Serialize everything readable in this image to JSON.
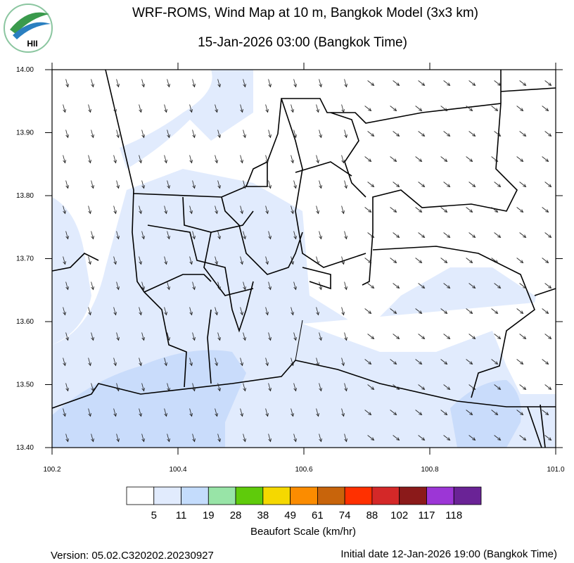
{
  "logo": {
    "text": "HII"
  },
  "header": {
    "title": "WRF-ROMS, Wind Map at 10 m, Bangkok Model (3x3 km)",
    "subtitle": "15-Jan-2026 03:00 (Bangkok Time)"
  },
  "axes": {
    "x_ticks": [
      "100.2",
      "100.4",
      "100.6",
      "100.8",
      "101.0"
    ],
    "y_ticks": [
      "14.00",
      "13.90",
      "13.80",
      "13.70",
      "13.60",
      "13.50",
      "13.40"
    ]
  },
  "colorbar": {
    "label": "Beaufort Scale (km/hr)",
    "colors": [
      "#ffffff",
      "#e1ebfd",
      "#c4dcfc",
      "#98e4a7",
      "#5fcb0b",
      "#f5d800",
      "#fb8c00",
      "#c8640b",
      "#ff3000",
      "#d42828",
      "#8b1a1a",
      "#9c36d6",
      "#6a2396"
    ],
    "labels": [
      "5",
      "11",
      "19",
      "28",
      "38",
      "49",
      "61",
      "74",
      "88",
      "102",
      "117",
      "118"
    ]
  },
  "footer": {
    "version": "Version: 05.02.C320202.20230927",
    "initial_date": "Initial date 12-Jan-2026 19:00 (Bangkok Time)"
  }
}
